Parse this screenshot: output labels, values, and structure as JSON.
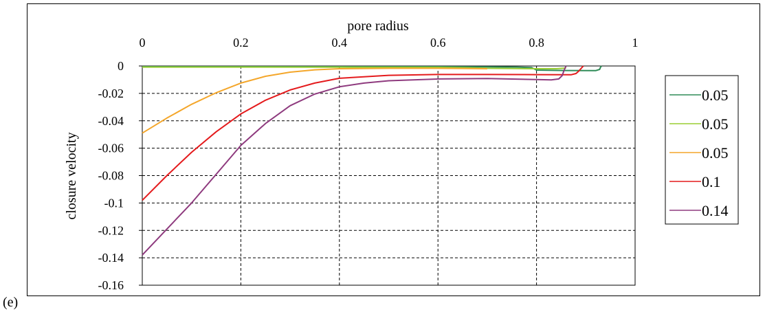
{
  "panel_label": "(e)",
  "chart_data": {
    "type": "line",
    "title": "",
    "xlabel": "pore radius",
    "ylabel": "closure velocity",
    "xlim": [
      0,
      1
    ],
    "ylim": [
      -0.16,
      0
    ],
    "x_ticks": [
      "0",
      "0.2",
      "0.4",
      "0.6",
      "0.8",
      "1"
    ],
    "y_ticks": [
      "0",
      "-0.02",
      "-0.04",
      "-0.06",
      "-0.08",
      "-0.1",
      "-0.12",
      "-0.14",
      "-0.16"
    ],
    "x_axis_position": "top",
    "grid": true,
    "grid_style": "dashed",
    "legend_position": "right",
    "series": [
      {
        "name": "0.05",
        "color": "#2e8b57",
        "x": [
          0,
          0.2,
          0.4,
          0.6,
          0.7,
          0.76,
          0.79,
          0.8,
          0.86,
          0.92,
          0.928,
          0.93,
          0.932
        ],
        "y": [
          -0.0005,
          -0.0005,
          -0.0005,
          -0.0005,
          -0.0006,
          -0.0008,
          -0.0012,
          -0.003,
          -0.0033,
          -0.0034,
          -0.0025,
          -0.0008,
          0
        ]
      },
      {
        "name": "0.05",
        "color": "#9acd32",
        "x": [
          0,
          0.2,
          0.4,
          0.6,
          0.66,
          0.7,
          0.76,
          0.8,
          0.84,
          0.86
        ],
        "y": [
          -0.0008,
          -0.0008,
          -0.0009,
          -0.001,
          -0.0013,
          -0.0017,
          -0.0019,
          -0.002,
          -0.002,
          -0.0015
        ]
      },
      {
        "name": "0.05",
        "color": "#f4a62a",
        "x": [
          0,
          0.05,
          0.1,
          0.15,
          0.2,
          0.25,
          0.3,
          0.35,
          0.4,
          0.5,
          0.6,
          0.65,
          0.7
        ],
        "y": [
          -0.049,
          -0.038,
          -0.028,
          -0.0195,
          -0.0125,
          -0.0075,
          -0.0045,
          -0.0028,
          -0.002,
          -0.0017,
          -0.0017,
          -0.0018,
          -0.002
        ]
      },
      {
        "name": "0.1",
        "color": "#e41a1c",
        "x": [
          0,
          0.05,
          0.1,
          0.15,
          0.2,
          0.25,
          0.3,
          0.35,
          0.4,
          0.5,
          0.6,
          0.7,
          0.8,
          0.87,
          0.88,
          0.885,
          0.89,
          0.895
        ],
        "y": [
          -0.098,
          -0.08,
          -0.063,
          -0.048,
          -0.035,
          -0.025,
          -0.0175,
          -0.0125,
          -0.009,
          -0.0068,
          -0.0062,
          -0.0062,
          -0.0063,
          -0.0064,
          -0.0055,
          -0.004,
          -0.002,
          0
        ]
      },
      {
        "name": "0.14",
        "color": "#8e3a7e",
        "x": [
          0,
          0.05,
          0.1,
          0.15,
          0.2,
          0.25,
          0.3,
          0.35,
          0.4,
          0.45,
          0.5,
          0.6,
          0.7,
          0.8,
          0.83,
          0.845,
          0.852,
          0.856,
          0.86
        ],
        "y": [
          -0.138,
          -0.119,
          -0.1,
          -0.079,
          -0.058,
          -0.042,
          -0.029,
          -0.0205,
          -0.0152,
          -0.0125,
          -0.0108,
          -0.0095,
          -0.0092,
          -0.0099,
          -0.0102,
          -0.0095,
          -0.007,
          -0.003,
          0
        ]
      }
    ]
  }
}
